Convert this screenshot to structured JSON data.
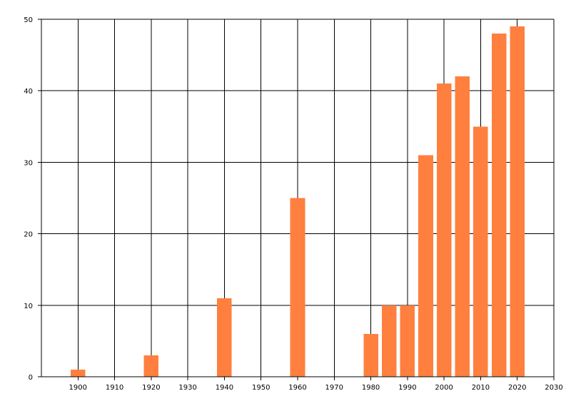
{
  "chart_data": {
    "type": "bar",
    "title": "",
    "xlabel": "",
    "ylabel": "",
    "xlim": [
      1890,
      2030
    ],
    "ylim": [
      0,
      50
    ],
    "x_ticks": [
      1900,
      1910,
      1920,
      1930,
      1940,
      1950,
      1960,
      1970,
      1980,
      1990,
      2000,
      2010,
      2020,
      2030
    ],
    "y_ticks": [
      0,
      10,
      20,
      30,
      40,
      50
    ],
    "grid": true,
    "bar_width_years": 4,
    "series": [
      {
        "x": [
          1900,
          1920,
          1940,
          1960,
          1980,
          1985,
          1990,
          1995,
          2000,
          2005,
          2010,
          2015,
          2020
        ],
        "values": [
          1,
          3,
          11,
          25,
          6,
          10,
          10,
          31,
          41,
          42,
          35,
          48,
          49
        ]
      }
    ],
    "colors": {
      "bar": "#FF7F3F",
      "grid": "#000000",
      "background": "#FFFFFF"
    }
  }
}
